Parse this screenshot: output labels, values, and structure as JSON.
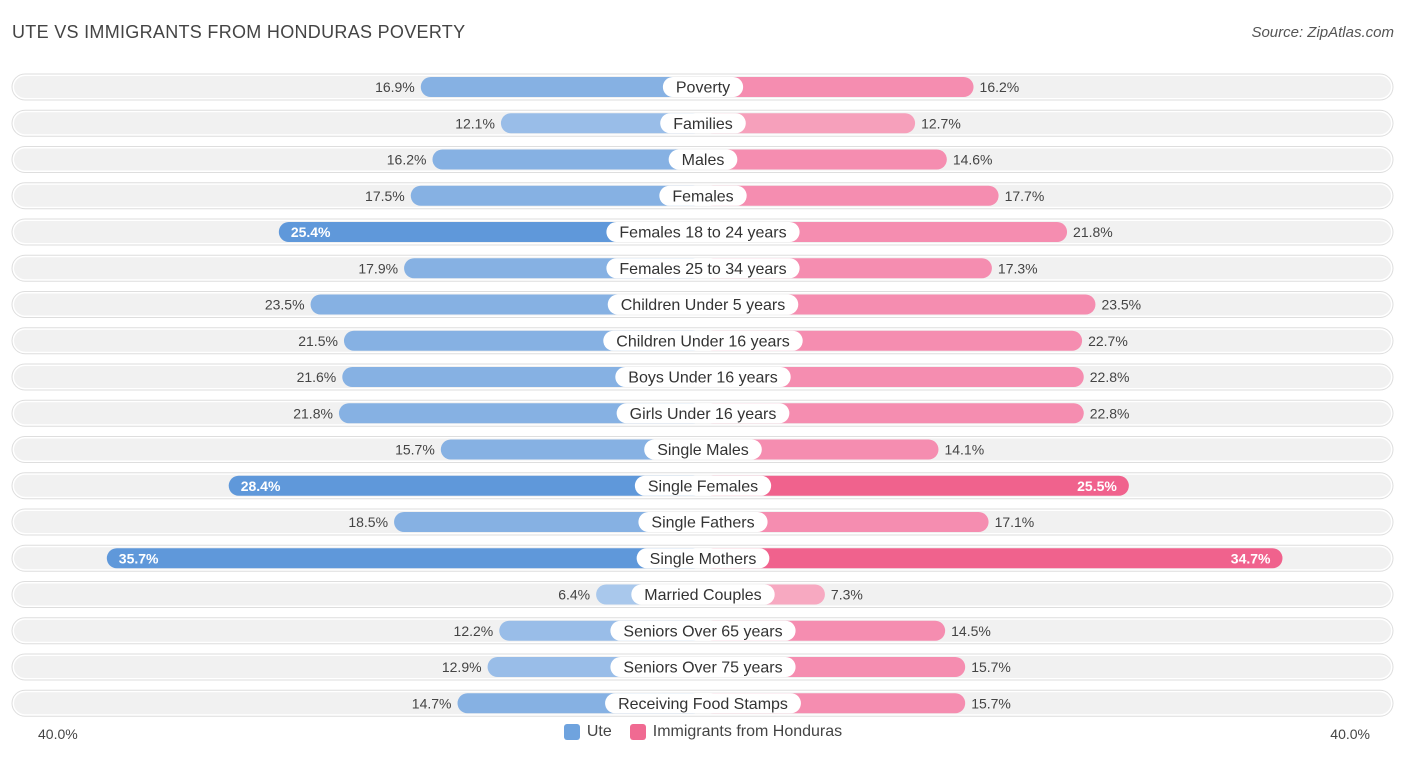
{
  "title": "UTE VS IMMIGRANTS FROM HONDURAS POVERTY",
  "source": "Source: ZipAtlas.com",
  "colors": {
    "left": "#6fa3de",
    "left_light": "#a9c8ec",
    "right": "#f06a92",
    "right_light": "#f7a9c1",
    "row_bg": "#f1f1f1"
  },
  "axis": {
    "left_label": "40.0%",
    "right_label": "40.0%"
  },
  "legend": [
    {
      "label": "Ute",
      "color": "#6fa3de"
    },
    {
      "label": "Immigrants from Honduras",
      "color": "#f06a92"
    }
  ],
  "chart_data": {
    "type": "bar",
    "orientation": "horizontal-diverging",
    "title": "UTE VS IMMIGRANTS FROM HONDURAS POVERTY",
    "xlim": [
      -40,
      40
    ],
    "categories": [
      "Poverty",
      "Families",
      "Males",
      "Females",
      "Females 18 to 24 years",
      "Females 25 to 34 years",
      "Children Under 5 years",
      "Children Under 16 years",
      "Boys Under 16 years",
      "Girls Under 16 years",
      "Single Males",
      "Single Females",
      "Single Fathers",
      "Single Mothers",
      "Married Couples",
      "Seniors Over 65 years",
      "Seniors Over 75 years",
      "Receiving Food Stamps"
    ],
    "series": [
      {
        "name": "Ute",
        "values": [
          16.9,
          12.1,
          16.2,
          17.5,
          25.4,
          17.9,
          23.5,
          21.5,
          21.6,
          21.8,
          15.7,
          28.4,
          18.5,
          35.7,
          6.4,
          12.2,
          12.9,
          14.7
        ],
        "labels": [
          "16.9%",
          "12.1%",
          "16.2%",
          "17.5%",
          "25.4%",
          "17.9%",
          "23.5%",
          "21.5%",
          "21.6%",
          "21.8%",
          "15.7%",
          "28.4%",
          "18.5%",
          "35.7%",
          "6.4%",
          "12.2%",
          "12.9%",
          "14.7%"
        ]
      },
      {
        "name": "Immigrants from Honduras",
        "values": [
          16.2,
          12.7,
          14.6,
          17.7,
          21.8,
          17.3,
          23.5,
          22.7,
          22.8,
          22.8,
          14.1,
          25.5,
          17.1,
          34.7,
          7.3,
          14.5,
          15.7,
          15.7
        ],
        "labels": [
          "16.2%",
          "12.7%",
          "14.6%",
          "17.7%",
          "21.8%",
          "17.3%",
          "23.5%",
          "22.7%",
          "22.8%",
          "22.8%",
          "14.1%",
          "25.5%",
          "17.1%",
          "34.7%",
          "7.3%",
          "14.5%",
          "15.7%",
          "15.7%"
        ]
      }
    ],
    "legend_position": "bottom-center"
  }
}
